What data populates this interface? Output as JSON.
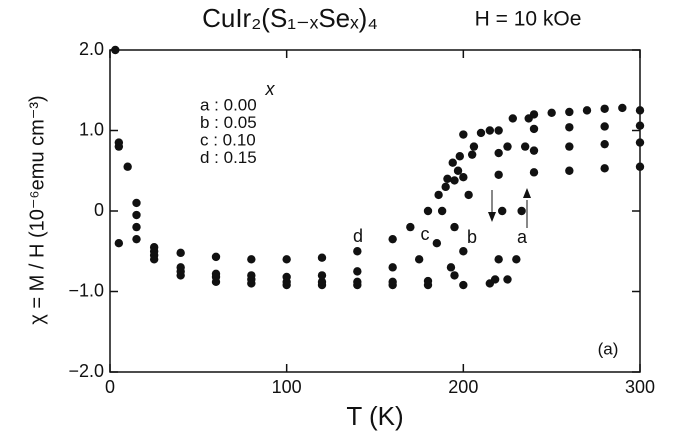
{
  "chart_data": {
    "type": "scatter",
    "title": "CuIr₂(S₁₋ₓSeₓ)₄",
    "annotation": "H = 10 kOe",
    "panel_label": "(a)",
    "x_label": "T (K)",
    "y_label": "χ = M / H (10⁻⁶emu cm⁻³)",
    "legend_title": "x",
    "legend": [
      "a : 0.00",
      "b : 0.05",
      "c : 0.10",
      "d : 0.15"
    ],
    "xlim": [
      0,
      300
    ],
    "xticks": [
      0,
      100,
      200,
      300
    ],
    "ylim": [
      -2,
      2
    ],
    "yticks": [
      {
        "value": 2,
        "label": "2.0"
      },
      {
        "value": 1,
        "label": "1.0"
      },
      0,
      {
        "value": -1,
        "label": "−1.0"
      },
      {
        "value": -2,
        "label": "−2.0"
      }
    ],
    "color": "#111111",
    "series": [
      {
        "name": "a",
        "x": [
          3,
          10,
          15,
          25,
          40,
          60,
          80,
          100,
          120,
          140,
          160,
          180,
          200,
          215,
          225,
          230,
          233,
          235,
          237,
          240,
          250,
          260,
          270,
          280,
          290,
          300,
          228,
          225,
          222,
          220,
          218
        ],
        "values": [
          2.0,
          0.55,
          0.1,
          -0.6,
          -0.8,
          -0.88,
          -0.9,
          -0.92,
          -0.92,
          -0.92,
          -0.92,
          -0.92,
          -0.92,
          -0.9,
          -0.85,
          -0.6,
          0.0,
          0.8,
          1.15,
          1.2,
          1.22,
          1.23,
          1.25,
          1.27,
          1.28,
          1.25,
          1.15,
          0.8,
          0.0,
          -0.6,
          -0.85
        ]
      },
      {
        "name": "b",
        "x": [
          5,
          15,
          25,
          40,
          60,
          80,
          100,
          120,
          140,
          160,
          180,
          195,
          200,
          203,
          206,
          210,
          215,
          220,
          240,
          260,
          280,
          300,
          200,
          197,
          195,
          193
        ],
        "values": [
          0.85,
          -0.05,
          -0.55,
          -0.75,
          -0.82,
          -0.85,
          -0.88,
          -0.88,
          -0.88,
          -0.88,
          -0.87,
          -0.8,
          -0.5,
          0.2,
          0.8,
          0.97,
          1.0,
          1.0,
          1.02,
          1.04,
          1.05,
          1.06,
          0.95,
          0.5,
          -0.2,
          -0.7
        ]
      },
      {
        "name": "c",
        "x": [
          5,
          15,
          25,
          40,
          60,
          80,
          100,
          120,
          140,
          160,
          175,
          185,
          188,
          191,
          194,
          198,
          205,
          220,
          240,
          260,
          280,
          300
        ],
        "values": [
          0.8,
          -0.2,
          -0.5,
          -0.7,
          -0.78,
          -0.8,
          -0.82,
          -0.8,
          -0.75,
          -0.7,
          -0.6,
          -0.4,
          0.0,
          0.4,
          0.6,
          0.68,
          0.7,
          0.72,
          0.75,
          0.8,
          0.83,
          0.85
        ]
      },
      {
        "name": "d",
        "x": [
          5,
          15,
          25,
          40,
          60,
          80,
          100,
          120,
          140,
          160,
          170,
          180,
          186,
          190,
          195,
          200,
          220,
          240,
          260,
          280,
          300
        ],
        "values": [
          -0.4,
          -0.35,
          -0.45,
          -0.52,
          -0.57,
          -0.6,
          -0.6,
          -0.58,
          -0.5,
          -0.35,
          -0.2,
          0.0,
          0.2,
          0.3,
          0.38,
          0.42,
          0.45,
          0.48,
          0.5,
          0.53,
          0.55
        ]
      }
    ]
  }
}
